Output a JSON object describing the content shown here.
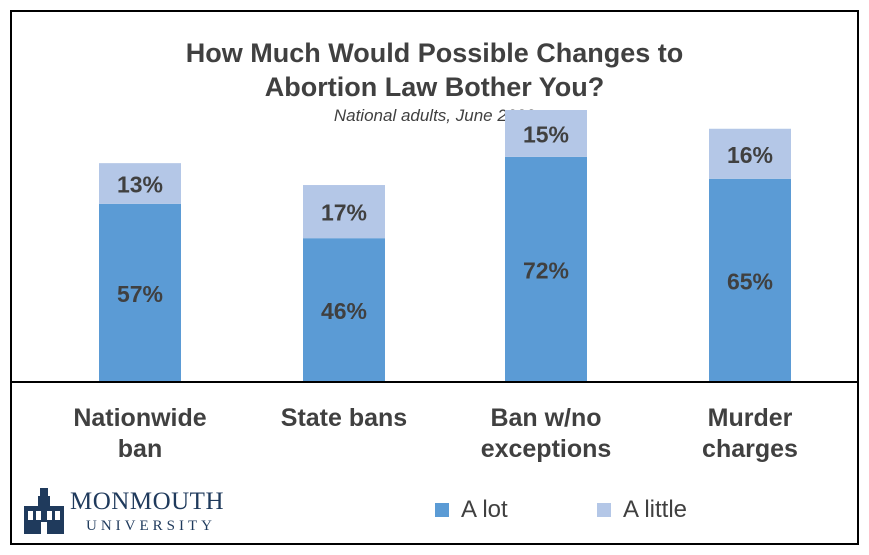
{
  "chart_data": {
    "type": "bar",
    "stacked": true,
    "title": [
      "How Much Would Possible Changes to",
      "Abortion Law Bother You?"
    ],
    "subtitle": "National adults, June 2022",
    "categories": [
      [
        "Nationwide",
        "ban"
      ],
      [
        "State bans"
      ],
      [
        "Ban w/no",
        "exceptions"
      ],
      [
        "Murder",
        "charges"
      ]
    ],
    "series": [
      {
        "name": "A lot",
        "values": [
          57,
          46,
          72,
          65
        ],
        "labels": [
          "57%",
          "46%",
          "72%",
          "65%"
        ],
        "color": "#5b9bd5"
      },
      {
        "name": "A little",
        "values": [
          13,
          17,
          15,
          16
        ],
        "labels": [
          "13%",
          "17%",
          "15%",
          "16%"
        ],
        "color": "#b4c7e7"
      }
    ],
    "ylim": [
      0,
      87
    ],
    "grid": false,
    "legend": "bottom-right"
  },
  "logo": {
    "line1": "MONMOUTH",
    "line2": "UNIVERSITY",
    "color": "#1f3a5c"
  }
}
